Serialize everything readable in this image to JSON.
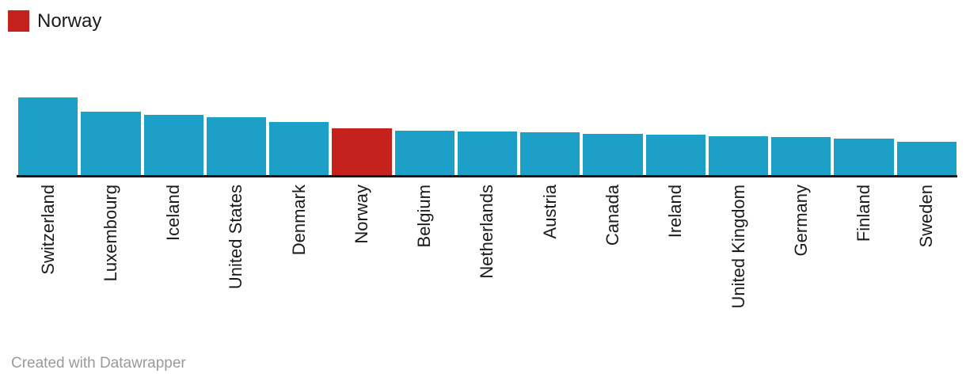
{
  "legend": {
    "label": "Norway",
    "swatch_color": "#c5211d"
  },
  "footer": {
    "text": "Created with Datawrapper"
  },
  "colors": {
    "bar_default": "#1ca0c8",
    "bar_highlight": "#c5211d",
    "axis_line": "#141414",
    "label_text": "#1b1b1b",
    "footer_text": "#9a9a9a"
  },
  "chart_data": {
    "type": "bar",
    "title": "",
    "xlabel": "",
    "ylabel": "",
    "categories": [
      "Switzerland",
      "Luxembourg",
      "Iceland",
      "United States",
      "Denmark",
      "Norway",
      "Belgium",
      "Netherlands",
      "Austria",
      "Canada",
      "Ireland",
      "United Kingdom",
      "Germany",
      "Finland",
      "Sweden"
    ],
    "values": [
      98,
      80,
      76,
      73,
      67,
      59,
      56,
      55,
      54,
      52,
      51,
      49,
      48,
      46,
      42
    ],
    "value_note": "no y-axis shown; values are relative bar heights in px estimated from pixels",
    "highlight_category": "Norway",
    "legend_position": "top-left",
    "grid": false,
    "x_tick_label_rotation": -90
  }
}
